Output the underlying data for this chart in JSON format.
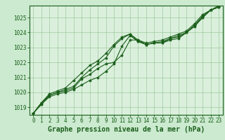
{
  "title": "Graphe pression niveau de la mer (hPa)",
  "background_color": "#cbeacf",
  "plot_bg_color": "#daf0dc",
  "grid_color": "#9ec99e",
  "line_color": "#1a5e1a",
  "xlim": [
    -0.5,
    23.5
  ],
  "ylim": [
    1018.5,
    1025.8
  ],
  "xticks": [
    0,
    1,
    2,
    3,
    4,
    5,
    6,
    7,
    8,
    9,
    10,
    11,
    12,
    13,
    14,
    15,
    16,
    17,
    18,
    19,
    20,
    21,
    22,
    23
  ],
  "yticks": [
    1019,
    1020,
    1021,
    1022,
    1023,
    1024,
    1025
  ],
  "series": [
    [
      1018.6,
      1019.2,
      1019.7,
      1019.9,
      1020.0,
      1020.2,
      1020.5,
      1020.8,
      1021.0,
      1021.4,
      1021.9,
      1023.1,
      1023.8,
      1023.4,
      1023.2,
      1023.3,
      1023.3,
      1023.5,
      1023.6,
      1024.0,
      1024.4,
      1025.0,
      1025.5,
      1025.7
    ],
    [
      1018.6,
      1019.2,
      1019.8,
      1020.0,
      1020.1,
      1020.3,
      1020.9,
      1021.2,
      1021.6,
      1021.9,
      1022.0,
      1022.5,
      1023.5,
      1023.5,
      1023.2,
      1023.3,
      1023.3,
      1023.6,
      1023.7,
      1024.0,
      1024.5,
      1025.0,
      1025.5,
      1025.7
    ],
    [
      1018.6,
      1019.3,
      1019.8,
      1020.0,
      1020.2,
      1020.4,
      1021.0,
      1021.5,
      1021.9,
      1022.3,
      1023.1,
      1023.6,
      1023.9,
      1023.4,
      1023.2,
      1023.3,
      1023.4,
      1023.6,
      1023.8,
      1024.0,
      1024.5,
      1025.1,
      1025.5,
      1025.7
    ],
    [
      1018.6,
      1019.3,
      1019.9,
      1020.1,
      1020.3,
      1020.8,
      1021.3,
      1021.8,
      1022.1,
      1022.6,
      1023.2,
      1023.7,
      1023.9,
      1023.5,
      1023.3,
      1023.4,
      1023.5,
      1023.7,
      1023.9,
      1024.1,
      1024.6,
      1025.2,
      1025.5,
      1025.8
    ]
  ],
  "marker": "*",
  "marker_size": 3,
  "linewidth": 0.8,
  "title_fontsize": 7,
  "tick_fontsize": 5.5
}
